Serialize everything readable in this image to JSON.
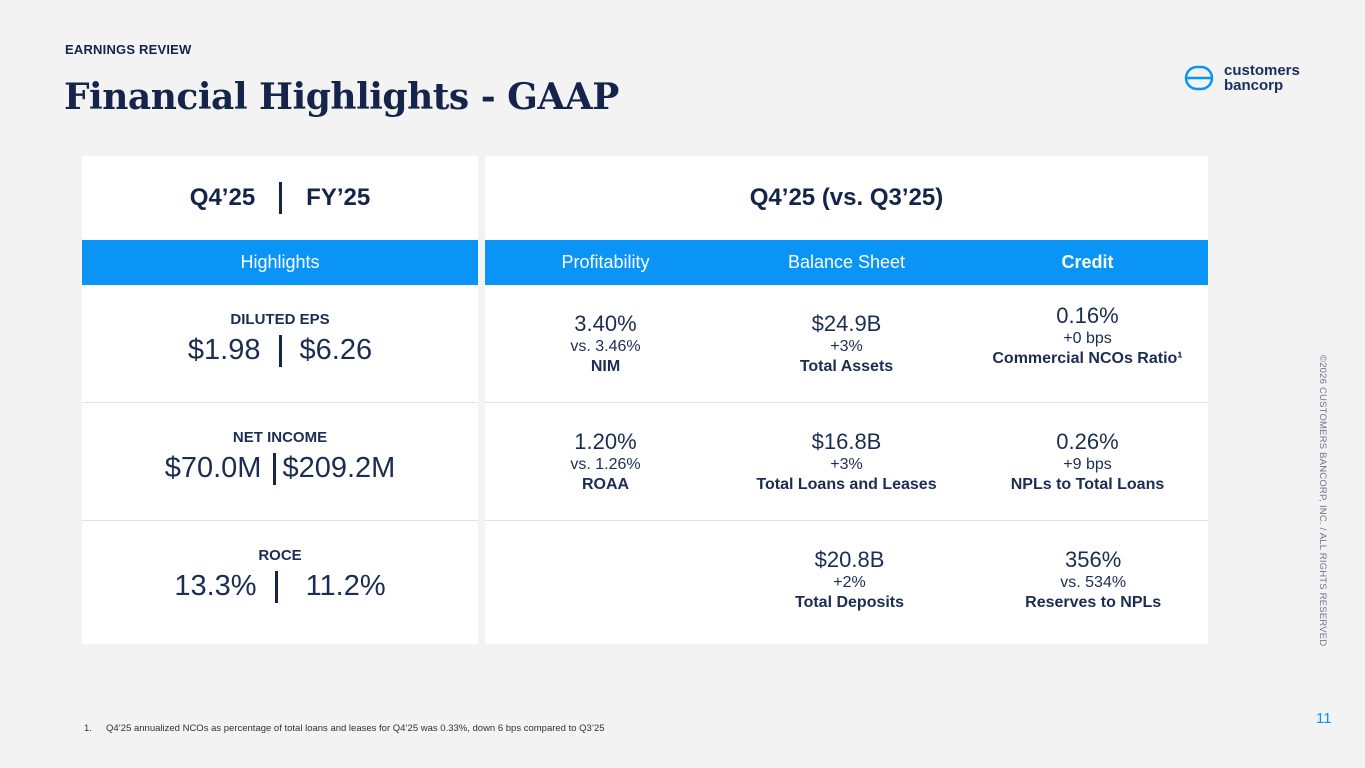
{
  "header": {
    "eyebrow": "EARNINGS REVIEW",
    "title": "Financial Highlights - GAAP",
    "logo_line1": "customers",
    "logo_line2": "bancorp"
  },
  "left": {
    "period_q": "Q4’25",
    "period_fy": "FY’25",
    "band_label": "Highlights",
    "rows": [
      {
        "label": "DILUTED EPS",
        "q": "$1.98",
        "fy": "$6.26"
      },
      {
        "label": "NET INCOME",
        "q": "$70.0M",
        "fy": "$209.2M"
      },
      {
        "label": "ROCE",
        "q": "13.3%",
        "fy": "11.2%"
      }
    ]
  },
  "right": {
    "heading": "Q4’25 (vs. Q3’25)",
    "columns": [
      "Profitability",
      "Balance Sheet",
      "Credit"
    ],
    "rows": [
      [
        {
          "value": "3.40%",
          "change": "vs. 3.46%",
          "metric": "NIM"
        },
        {
          "value": "$24.9B",
          "change": "+3%",
          "metric": "Total Assets"
        },
        {
          "value": "0.16%",
          "change": "+0 bps",
          "metric": "Commercial NCOs Ratio¹"
        }
      ],
      [
        {
          "value": "1.20%",
          "change": "vs. 1.26%",
          "metric": "ROAA"
        },
        {
          "value": "$16.8B",
          "change": "+3%",
          "metric": "Total Loans and Leases"
        },
        {
          "value": "0.26%",
          "change": "+9 bps",
          "metric": "NPLs to Total Loans"
        }
      ],
      [
        {
          "value": "",
          "change": "",
          "metric": ""
        },
        {
          "value": "$20.8B",
          "change": "+2%",
          "metric": "Total Deposits"
        },
        {
          "value": "356%",
          "change": "vs. 534%",
          "metric": "Reserves to NPLs"
        }
      ]
    ]
  },
  "footer": {
    "copyright": "©2026 CUSTOMERS BANCORP, INC. / ALL RIGHTS RESERVED",
    "page_number": "11",
    "footnote_num": "1.",
    "footnote_text": "Q4’25 annualized NCOs as percentage of total loans and leases for Q4’25 was 0.33%, down 6 bps compared to Q3’25"
  },
  "colors": {
    "accent": "#0a94f5",
    "navy": "#14244a"
  }
}
